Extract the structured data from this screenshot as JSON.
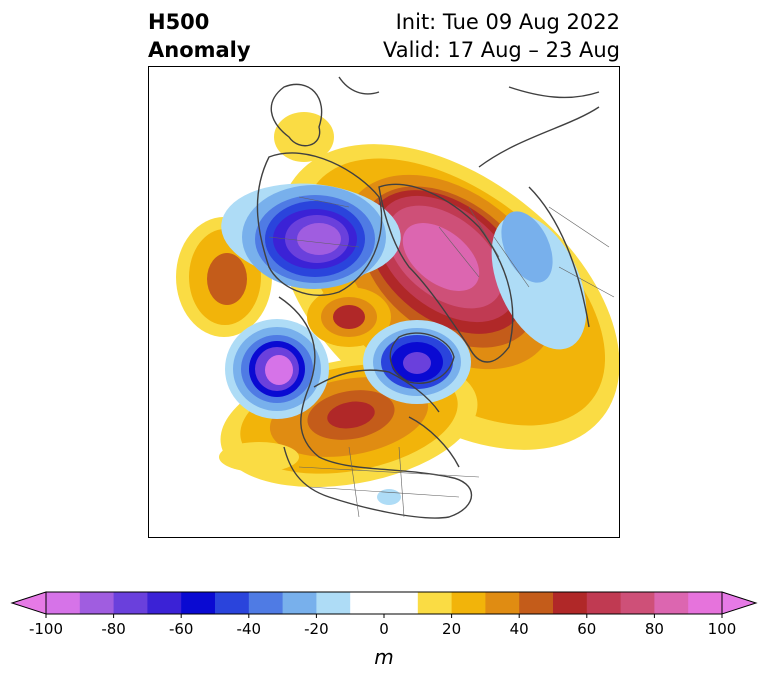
{
  "title": {
    "left_line1": "H500",
    "left_line2": "Anomaly",
    "right_line1": "Init: Tue 09 Aug 2022",
    "right_line2": "Valid: 17 Aug – 23 Aug"
  },
  "colorbar": {
    "unit": "m",
    "ticks": [
      "-100",
      "-80",
      "-60",
      "-40",
      "-20",
      "0",
      "20",
      "40",
      "60",
      "80",
      "100"
    ],
    "bins": [
      {
        "from": -100,
        "to": -90,
        "color": "#d673e8"
      },
      {
        "from": -90,
        "to": -80,
        "color": "#a05de0"
      },
      {
        "from": -80,
        "to": -70,
        "color": "#6a40dc"
      },
      {
        "from": -70,
        "to": -60,
        "color": "#3b22d6"
      },
      {
        "from": -60,
        "to": -50,
        "color": "#0a0ad2"
      },
      {
        "from": -50,
        "to": -40,
        "color": "#2a44dc"
      },
      {
        "from": -40,
        "to": -30,
        "color": "#4f7be4"
      },
      {
        "from": -30,
        "to": -20,
        "color": "#78b0ec"
      },
      {
        "from": -20,
        "to": -10,
        "color": "#aedcf6"
      },
      {
        "from": -10,
        "to": 10,
        "color": "#ffffff"
      },
      {
        "from": 10,
        "to": 20,
        "color": "#fadc44"
      },
      {
        "from": 20,
        "to": 30,
        "color": "#f2b40a"
      },
      {
        "from": 30,
        "to": 40,
        "color": "#e08c12"
      },
      {
        "from": 40,
        "to": 50,
        "color": "#c45c1a"
      },
      {
        "from": 50,
        "to": 60,
        "color": "#b02828"
      },
      {
        "from": 60,
        "to": 70,
        "color": "#c03a52"
      },
      {
        "from": 70,
        "to": 80,
        "color": "#ce5078"
      },
      {
        "from": 80,
        "to": 90,
        "color": "#dc66b0"
      },
      {
        "from": 90,
        "to": 100,
        "color": "#e673dc"
      }
    ],
    "min_extend_color": "#e67ae6",
    "max_extend_color": "#e67ae6"
  }
}
